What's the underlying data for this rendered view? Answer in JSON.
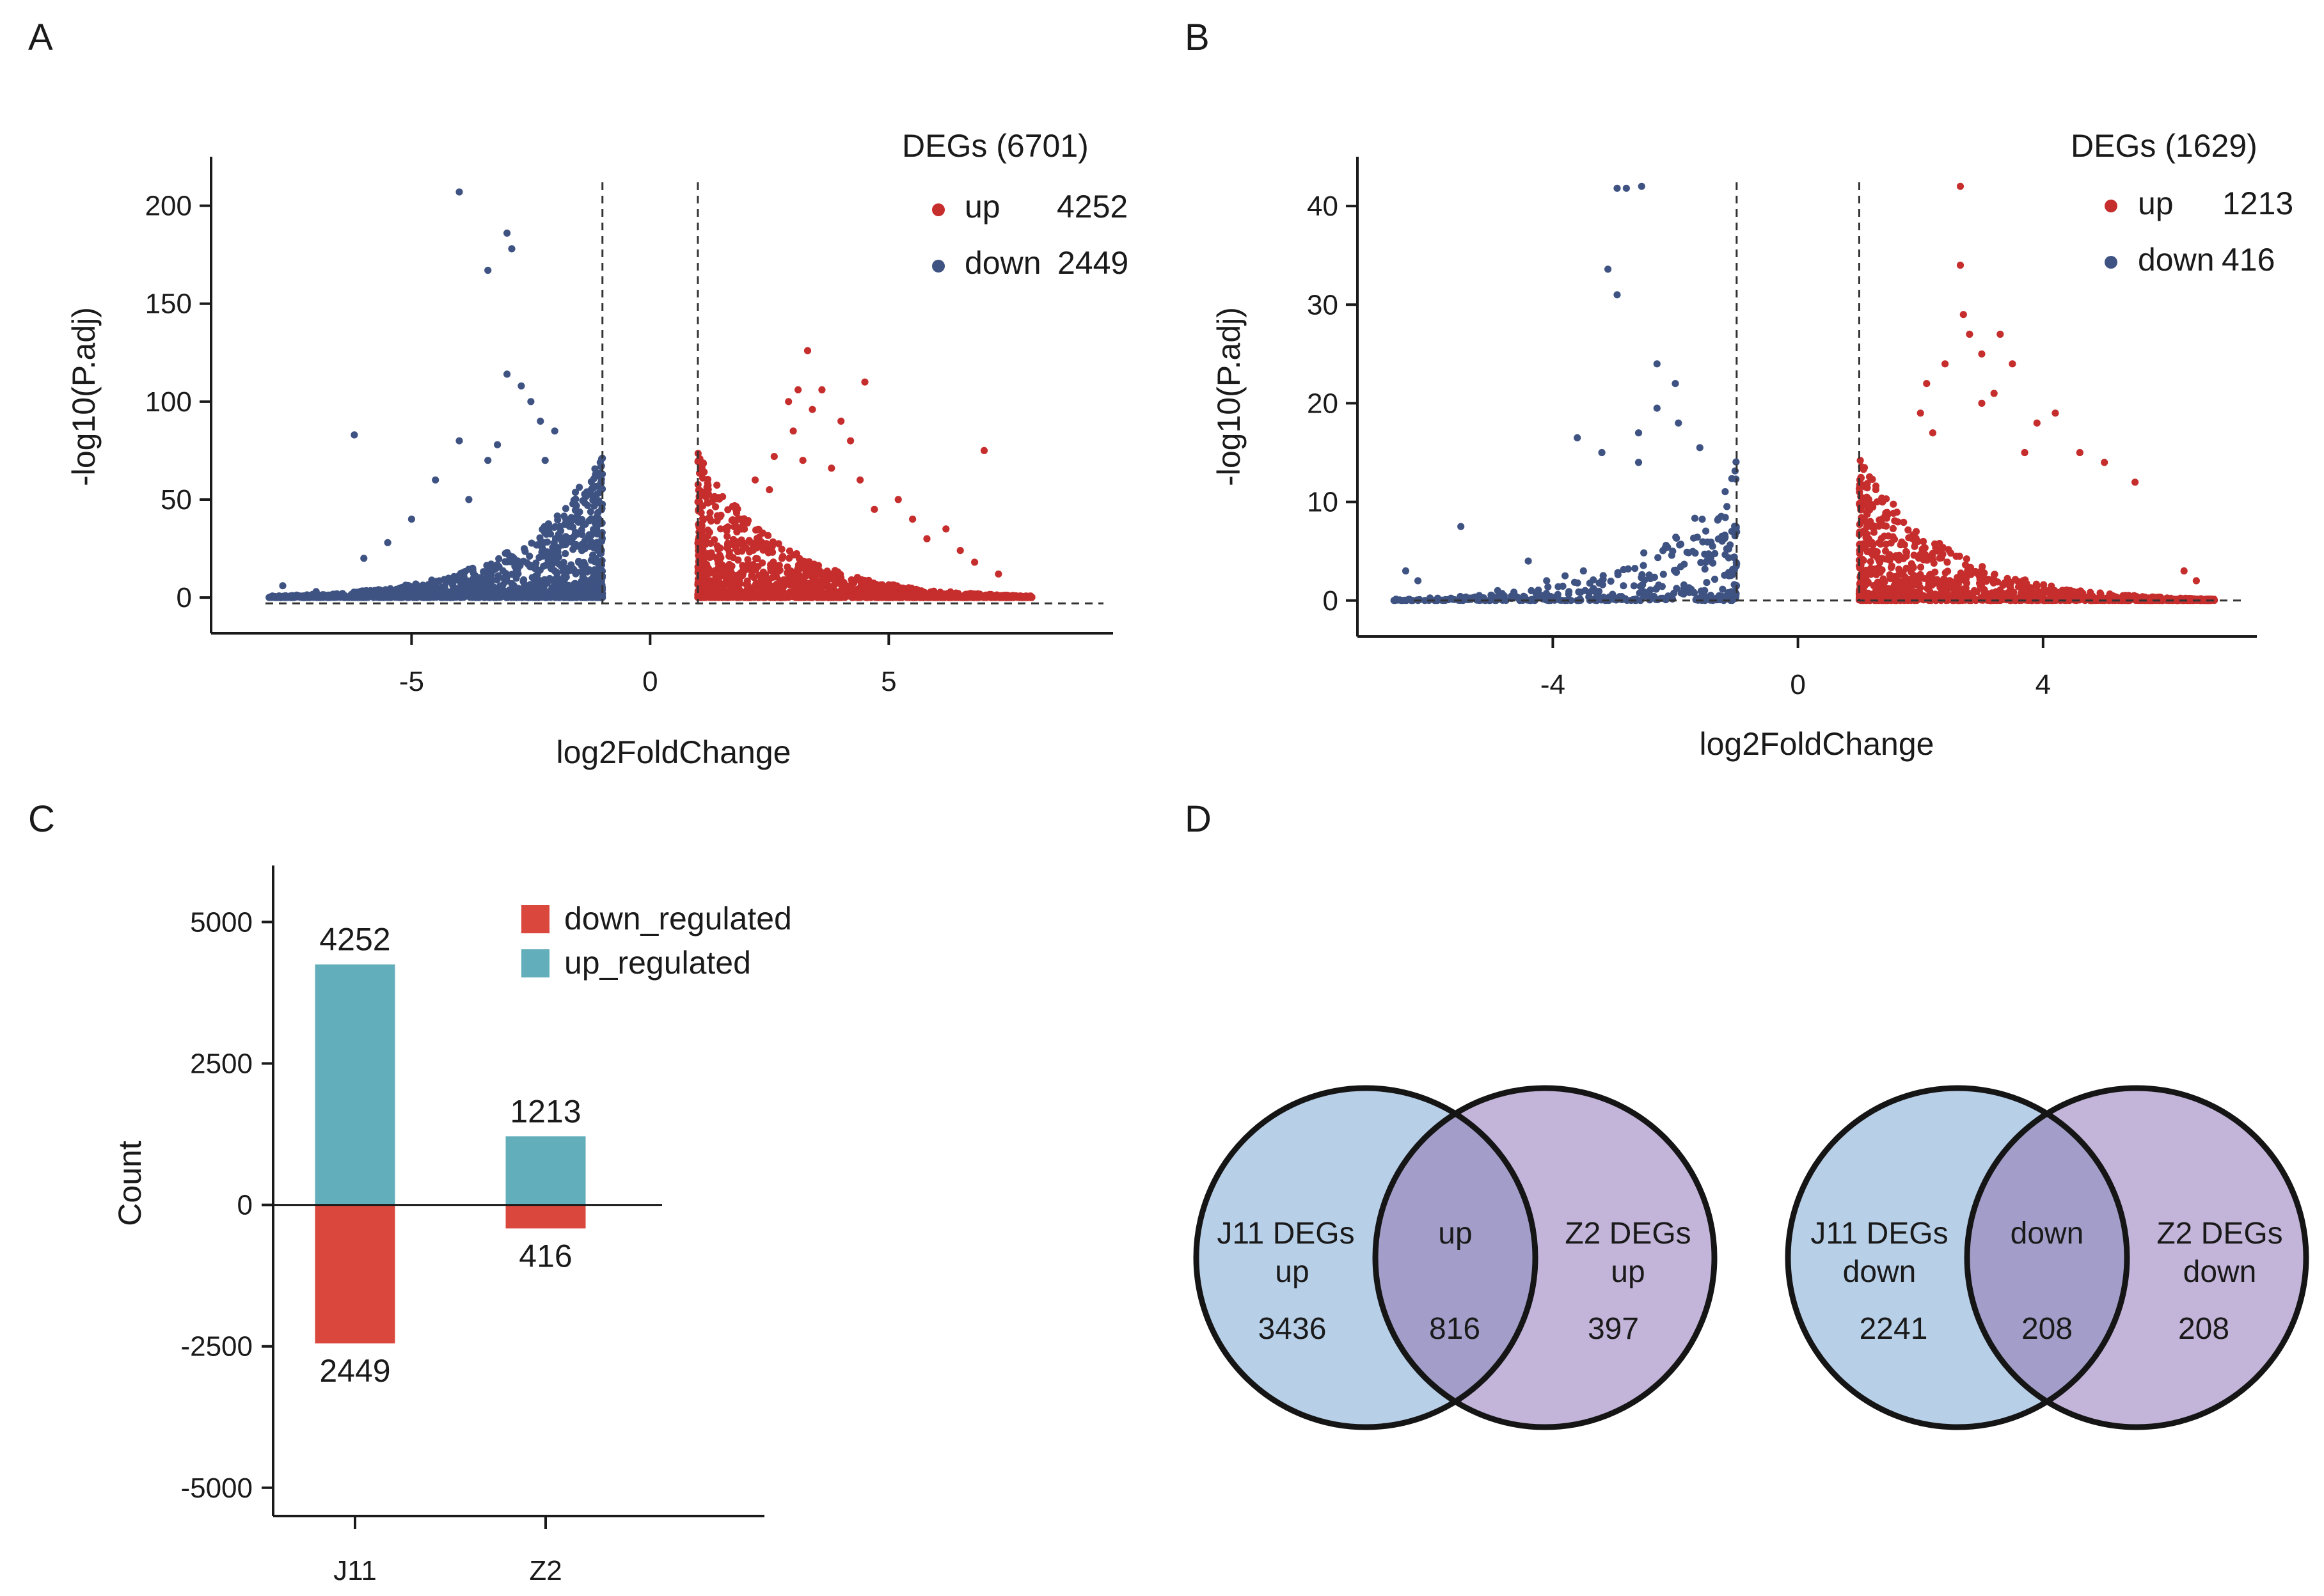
{
  "colors": {
    "up": "#c62d2d",
    "down": "#3f5383",
    "bar_up": "#63aebb",
    "bar_down": "#d9473d",
    "venn_left": "#b8cfe8",
    "venn_right": "#c3b4d9",
    "venn_overlap": "#a39ec9"
  },
  "panels": {
    "A": "A",
    "B": "B",
    "C": "C",
    "D": "D"
  },
  "chart_data": [
    {
      "id": "A",
      "type": "scatter",
      "title": "",
      "xlabel": "log2FoldChange",
      "ylabel": "-log10(P.adj)",
      "xlim": [
        -9,
        9.5
      ],
      "ylim": [
        -15,
        225
      ],
      "xticks": [
        -5,
        0,
        5
      ],
      "xtick_labels": [
        "-5",
        "0",
        "5"
      ],
      "yticks": [
        0,
        50,
        100,
        150,
        200
      ],
      "ytick_labels": [
        "0",
        "50",
        "100",
        "150",
        "200"
      ],
      "vlines": [
        -1,
        1
      ],
      "hline": -3,
      "legend": {
        "title": "DEGs (6701)",
        "entries": [
          {
            "name": "up",
            "count": "4252"
          },
          {
            "name": "down",
            "count": "2449"
          }
        ]
      },
      "series": [
        {
          "name": "up",
          "color": "up",
          "x_range": [
            1,
            8
          ],
          "n_cloud": 1500,
          "seed": 11,
          "outliers": [
            [
              3.3,
              126
            ],
            [
              4.5,
              110
            ],
            [
              3.1,
              106
            ],
            [
              3.6,
              106
            ],
            [
              2.9,
              100
            ],
            [
              3.4,
              96
            ],
            [
              4.0,
              90
            ],
            [
              2.6,
              72
            ],
            [
              3.2,
              70
            ],
            [
              3.8,
              66
            ],
            [
              4.4,
              60
            ],
            [
              7.0,
              75
            ],
            [
              2.2,
              60
            ],
            [
              5.5,
              40
            ],
            [
              6.2,
              35
            ],
            [
              6.5,
              24
            ],
            [
              5.2,
              50
            ],
            [
              4.7,
              45
            ],
            [
              7.3,
              12
            ],
            [
              6.8,
              18
            ],
            [
              4.2,
              80
            ],
            [
              3.0,
              85
            ],
            [
              2.5,
              55
            ],
            [
              5.8,
              30
            ]
          ]
        },
        {
          "name": "down",
          "color": "down",
          "x_range": [
            -8,
            -1
          ],
          "n_cloud": 1300,
          "seed": 29,
          "outliers": [
            [
              -4.0,
              207
            ],
            [
              -3.0,
              186
            ],
            [
              -2.9,
              178
            ],
            [
              -3.4,
              167
            ],
            [
              -3.0,
              114
            ],
            [
              -2.7,
              108
            ],
            [
              -6.2,
              83
            ],
            [
              -4.0,
              80
            ],
            [
              -2.5,
              100
            ],
            [
              -2.3,
              90
            ],
            [
              -3.4,
              70
            ],
            [
              -4.5,
              60
            ],
            [
              -5.0,
              40
            ],
            [
              -6.0,
              20
            ],
            [
              -7.7,
              6
            ],
            [
              -7.0,
              3
            ],
            [
              -2.0,
              85
            ],
            [
              -3.8,
              50
            ],
            [
              -2.2,
              70
            ],
            [
              -5.5,
              28
            ],
            [
              -3.2,
              78
            ]
          ]
        }
      ]
    },
    {
      "id": "B",
      "type": "scatter",
      "title": "",
      "xlabel": "log2FoldChange",
      "ylabel": "-log10(P.adj)",
      "xlim": [
        -7,
        7.3
      ],
      "ylim": [
        -3,
        45
      ],
      "xticks": [
        -4,
        0,
        4
      ],
      "xtick_labels": [
        "-4",
        "0",
        "4"
      ],
      "yticks": [
        0,
        10,
        20,
        30,
        40
      ],
      "ytick_labels": [
        "0",
        "10",
        "20",
        "30",
        "40"
      ],
      "vlines": [
        -1,
        1
      ],
      "hline": 0,
      "legend": {
        "title": "DEGs (1629)",
        "entries": [
          {
            "name": "up",
            "count": "1213"
          },
          {
            "name": "down",
            "count": "416"
          }
        ]
      },
      "series": [
        {
          "name": "up",
          "color": "up",
          "x_range": [
            1,
            6.8
          ],
          "n_cloud": 1100,
          "seed": 41,
          "outliers": [
            [
              2.65,
              42
            ],
            [
              2.65,
              34
            ],
            [
              2.7,
              29
            ],
            [
              2.8,
              27
            ],
            [
              3.3,
              27
            ],
            [
              3.0,
              25
            ],
            [
              2.4,
              24
            ],
            [
              3.5,
              24
            ],
            [
              2.1,
              22
            ],
            [
              3.2,
              21
            ],
            [
              4.2,
              19
            ],
            [
              2.0,
              19
            ],
            [
              3.9,
              18
            ],
            [
              3.7,
              15
            ],
            [
              4.6,
              15
            ],
            [
              5.0,
              14
            ],
            [
              5.5,
              12
            ],
            [
              6.3,
              3
            ],
            [
              6.5,
              2
            ],
            [
              3.0,
              20
            ],
            [
              2.2,
              17
            ]
          ]
        },
        {
          "name": "down",
          "color": "down",
          "x_range": [
            -6.6,
            -1
          ],
          "n_cloud": 380,
          "seed": 53,
          "outliers": [
            [
              -2.55,
              42
            ],
            [
              -2.8,
              41.8
            ],
            [
              -2.95,
              41.8
            ],
            [
              -3.1,
              33.6
            ],
            [
              -2.95,
              31
            ],
            [
              -2.3,
              24
            ],
            [
              -2.0,
              22
            ],
            [
              -1.95,
              18
            ],
            [
              -2.3,
              19.5
            ],
            [
              -3.6,
              16.5
            ],
            [
              -3.2,
              15
            ],
            [
              -2.6,
              17
            ],
            [
              -5.5,
              7.5
            ],
            [
              -6.4,
              3
            ],
            [
              -6.2,
              2
            ],
            [
              -4.4,
              4
            ],
            [
              -4.1,
              2
            ],
            [
              -3.5,
              3
            ],
            [
              -4.9,
              1
            ],
            [
              -5.2,
              0.5
            ],
            [
              -3.8,
              2.5
            ],
            [
              -2.6,
              14
            ],
            [
              -1.6,
              15.5
            ]
          ]
        }
      ]
    },
    {
      "id": "C",
      "type": "bar",
      "title": "",
      "xlabel": "",
      "ylabel": "Count",
      "categories": [
        "J11",
        "Z2"
      ],
      "series": [
        {
          "name": "down_regulated",
          "color": "bar_down",
          "values": [
            -2449,
            -416
          ]
        },
        {
          "name": "up_regulated",
          "color": "bar_up",
          "values": [
            4252,
            1213
          ]
        }
      ],
      "bar_labels": {
        "up": [
          "4252",
          "1213"
        ],
        "down": [
          "2449",
          "416"
        ]
      },
      "ylim": [
        -5500,
        6000
      ],
      "yticks": [
        5000,
        2500,
        0,
        -2500,
        -5000
      ],
      "ytick_labels": [
        "5000",
        "2500",
        "0",
        "-2500",
        "-5000"
      ]
    }
  ],
  "venn": {
    "up": {
      "left_label": [
        "J11 DEGs",
        "up"
      ],
      "right_label": [
        "Z2 DEGs",
        "up"
      ],
      "overlap_label": "up",
      "left_value": "3436",
      "overlap_value": "816",
      "right_value": "397"
    },
    "down": {
      "left_label": [
        "J11 DEGs",
        "down"
      ],
      "right_label": [
        "Z2 DEGs",
        "down"
      ],
      "overlap_label": "down",
      "left_value": "2241",
      "overlap_value": "208",
      "right_value": "208"
    }
  }
}
